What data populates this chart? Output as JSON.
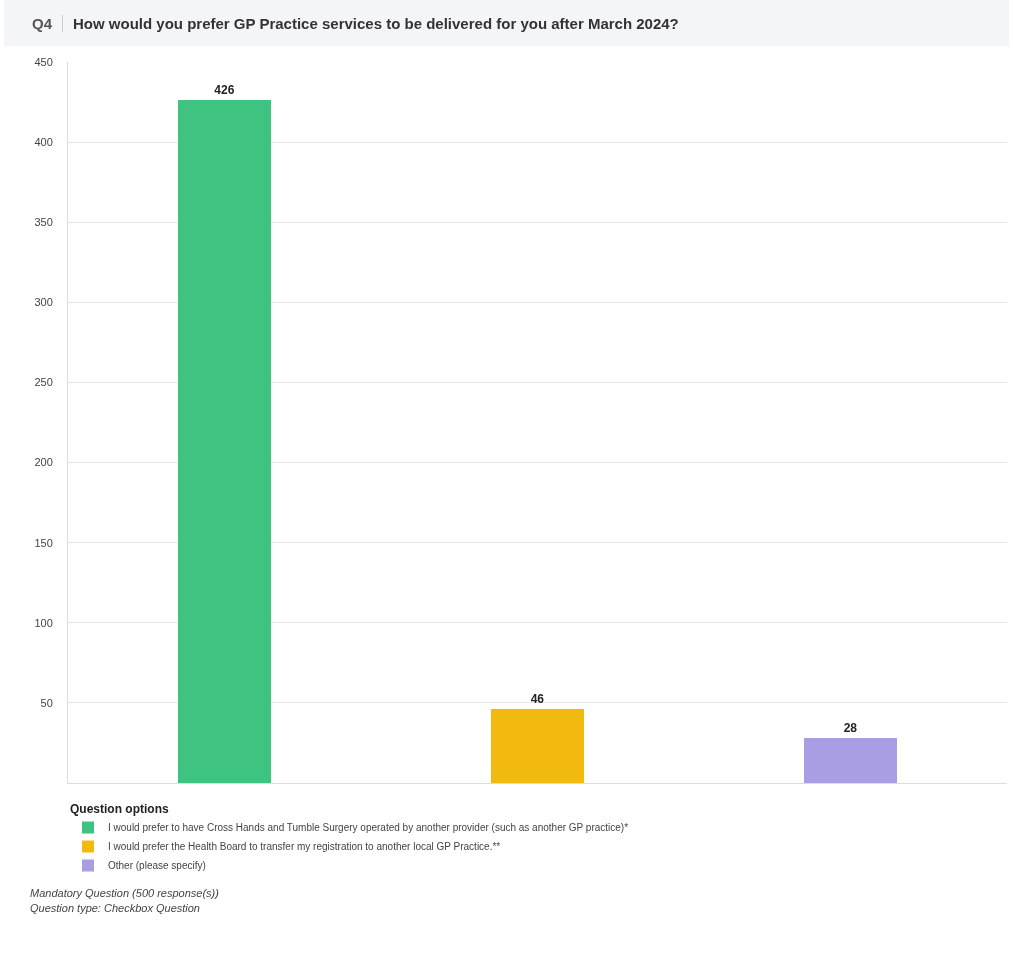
{
  "chart_data": {
    "type": "bar",
    "title": "Q4",
    "subtitle": "How would you prefer GP Practice services to be delivered for you after March 2024?",
    "legend_title": "Question options",
    "categories": [
      null,
      null,
      null
    ],
    "series": [
      {
        "name": "I would prefer to have Cross Hands and Tumble Surgery operated by another provider (such as another GP practice)*",
        "color": "#3fc380",
        "values": [
          426,
          null,
          null
        ]
      },
      {
        "name": "I would prefer the Health Board to transfer my registration to another local GP Practice.**",
        "color": "#f2b90f",
        "values": [
          null,
          46,
          null
        ]
      },
      {
        "name": "Other (please specify)",
        "color": "#a99de3",
        "values": [
          null,
          null,
          28
        ]
      }
    ],
    "ylim": [
      0,
      450
    ],
    "yticks": [
      50,
      100,
      150,
      200,
      250,
      300,
      350,
      400,
      450
    ],
    "grid": "y",
    "legend": "bottom",
    "data_labels": true,
    "annotations": [
      "Mandatory Question (500 response(s))",
      "Question type: Checkbox Question"
    ]
  }
}
